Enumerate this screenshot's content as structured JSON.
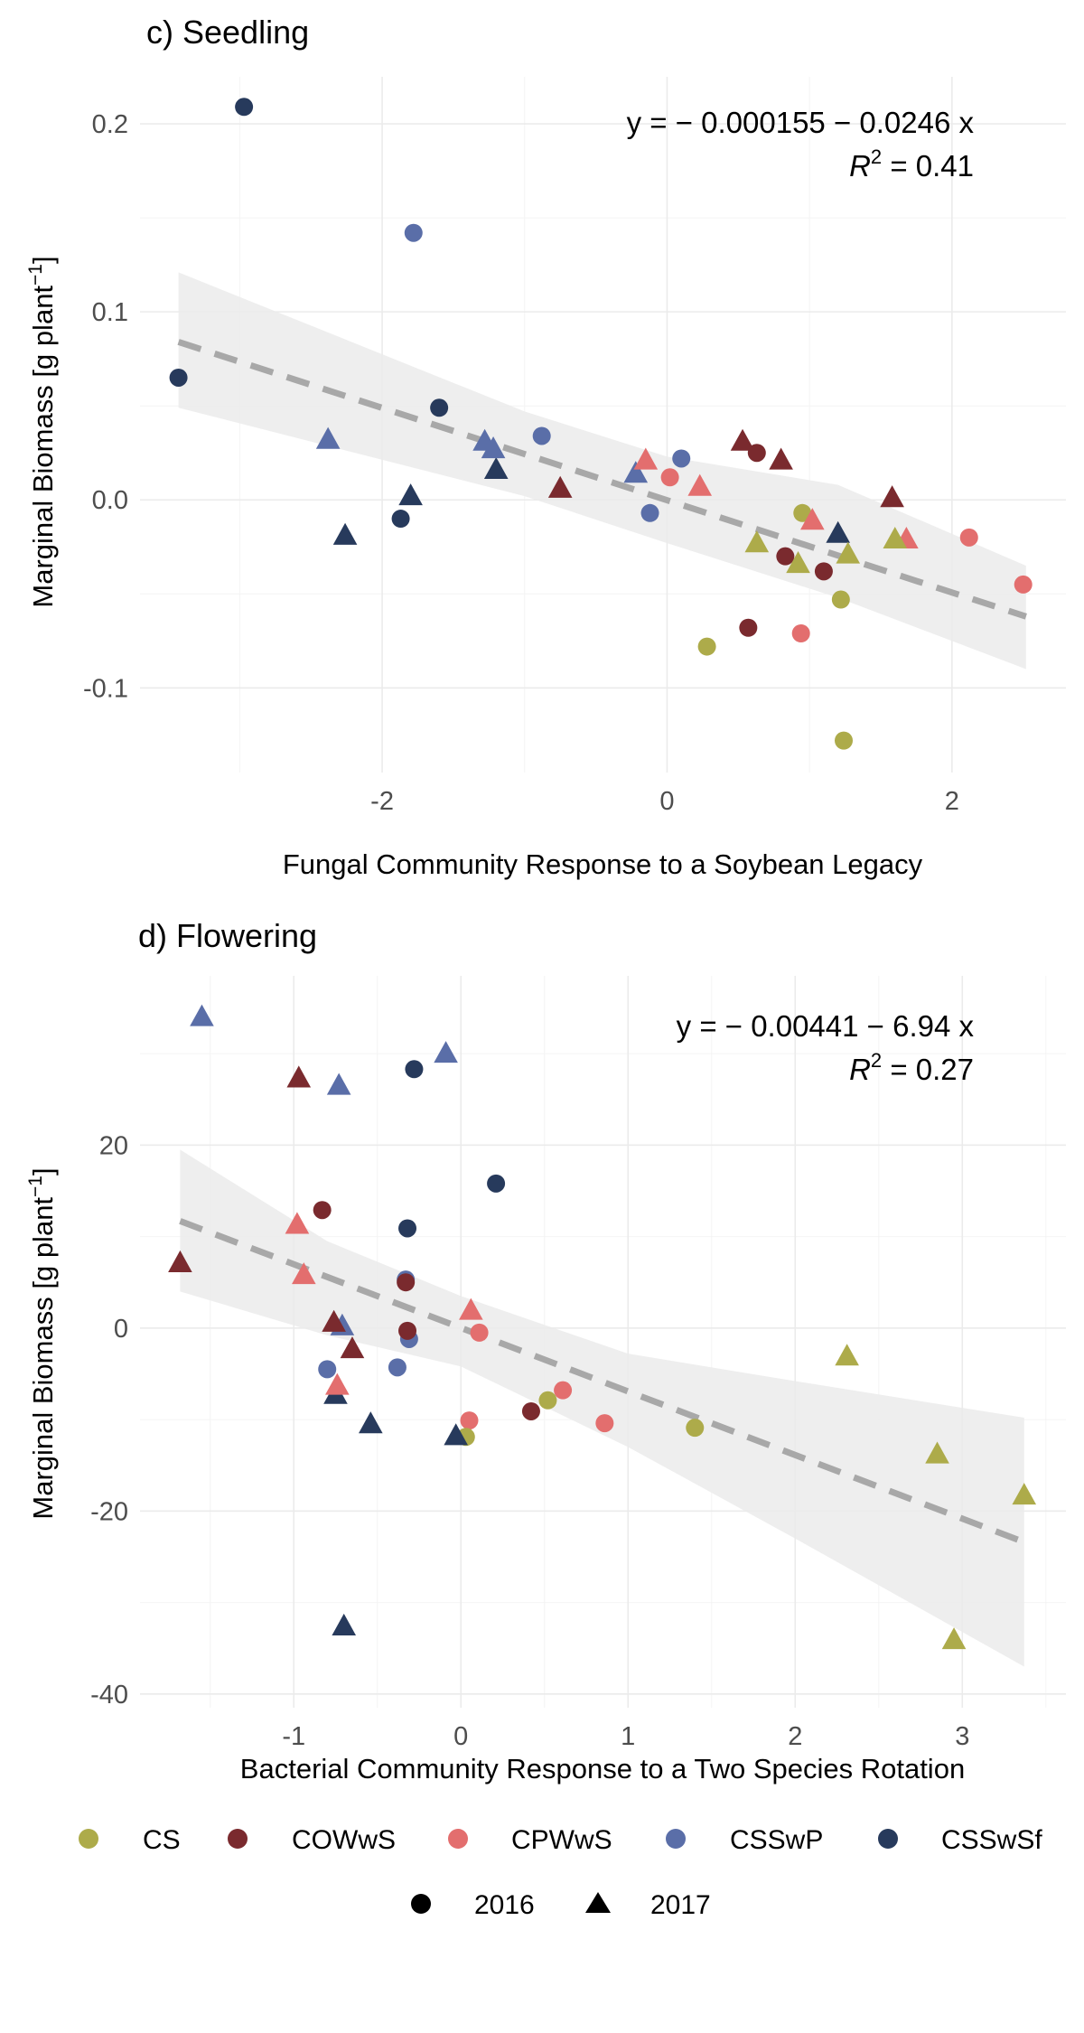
{
  "colors": {
    "CS": "#ADAB4A",
    "COWwS": "#7A2A2E",
    "CPWwS": "#E36E6E",
    "CSSwP": "#5A6EA8",
    "CSSwSf": "#273A5C",
    "ribbon": "#EBEBEB",
    "fit_line": "#A8A8A8"
  },
  "legend": {
    "groups": [
      "CS",
      "COWwS",
      "CPWwS",
      "CSSwP",
      "CSSwSf"
    ],
    "years": [
      "2016",
      "2017"
    ]
  },
  "chart_data": [
    {
      "type": "scatter",
      "title": "c) Seedling",
      "xlabel": "Fungal Community Response to a Soybean Legacy",
      "ylabel_main": "Marginal Biomass [g plant",
      "ylabel_sup": "−1",
      "ylabel_end": "]",
      "xlim": [
        -3.7,
        2.8
      ],
      "ylim": [
        -0.145,
        0.225
      ],
      "xticks": [
        -2,
        0,
        2
      ],
      "xtick_labels": [
        "-2",
        "0",
        "2"
      ],
      "yticks": [
        -0.1,
        0.0,
        0.1,
        0.2
      ],
      "ytick_labels": [
        "-0.1",
        "0.0",
        "0.1",
        "0.2"
      ],
      "equation": "y  =  − 0.000155 − 0.0246  x",
      "r2_label": "R",
      "r2_value": "  =  0.41",
      "fit": {
        "x": [
          -3.43,
          2.52
        ],
        "y": [
          0.084,
          -0.062
        ]
      },
      "ribbon": {
        "x": [
          -3.43,
          -1.0,
          0.0,
          1.2,
          2.52
        ],
        "upper": [
          0.121,
          0.047,
          0.023,
          0.008,
          -0.035
        ],
        "lower": [
          0.049,
          0.002,
          -0.023,
          -0.052,
          -0.09
        ]
      },
      "points": [
        {
          "x": -2.97,
          "y": 0.209,
          "group": "CSSwSf",
          "year": "2016"
        },
        {
          "x": -3.43,
          "y": 0.065,
          "group": "CSSwSf",
          "year": "2016"
        },
        {
          "x": -1.6,
          "y": 0.049,
          "group": "CSSwSf",
          "year": "2016"
        },
        {
          "x": -1.87,
          "y": -0.01,
          "group": "CSSwSf",
          "year": "2016"
        },
        {
          "x": -1.78,
          "y": 0.142,
          "group": "CSSwP",
          "year": "2016"
        },
        {
          "x": -0.88,
          "y": 0.034,
          "group": "CSSwP",
          "year": "2016"
        },
        {
          "x": 0.1,
          "y": 0.022,
          "group": "CSSwP",
          "year": "2016"
        },
        {
          "x": -0.12,
          "y": -0.007,
          "group": "CSSwP",
          "year": "2016"
        },
        {
          "x": 0.02,
          "y": 0.012,
          "group": "CPWwS",
          "year": "2016"
        },
        {
          "x": 2.12,
          "y": -0.02,
          "group": "CPWwS",
          "year": "2016"
        },
        {
          "x": 2.5,
          "y": -0.045,
          "group": "CPWwS",
          "year": "2016"
        },
        {
          "x": 0.94,
          "y": -0.071,
          "group": "CPWwS",
          "year": "2016"
        },
        {
          "x": 0.63,
          "y": 0.025,
          "group": "COWwS",
          "year": "2016"
        },
        {
          "x": 0.83,
          "y": -0.03,
          "group": "COWwS",
          "year": "2016"
        },
        {
          "x": 1.1,
          "y": -0.038,
          "group": "COWwS",
          "year": "2016"
        },
        {
          "x": 0.57,
          "y": -0.068,
          "group": "COWwS",
          "year": "2016"
        },
        {
          "x": 0.95,
          "y": -0.007,
          "group": "CS",
          "year": "2016"
        },
        {
          "x": 0.28,
          "y": -0.078,
          "group": "CS",
          "year": "2016"
        },
        {
          "x": 1.22,
          "y": -0.053,
          "group": "CS",
          "year": "2016"
        },
        {
          "x": 1.24,
          "y": -0.128,
          "group": "CS",
          "year": "2016"
        },
        {
          "x": -2.26,
          "y": -0.019,
          "group": "CSSwSf",
          "year": "2017"
        },
        {
          "x": -1.8,
          "y": 0.002,
          "group": "CSSwSf",
          "year": "2017"
        },
        {
          "x": -1.2,
          "y": 0.016,
          "group": "CSSwSf",
          "year": "2017"
        },
        {
          "x": 1.2,
          "y": -0.018,
          "group": "CSSwSf",
          "year": "2017"
        },
        {
          "x": -2.38,
          "y": 0.032,
          "group": "CSSwP",
          "year": "2017"
        },
        {
          "x": -1.28,
          "y": 0.031,
          "group": "CSSwP",
          "year": "2017"
        },
        {
          "x": -1.22,
          "y": 0.027,
          "group": "CSSwP",
          "year": "2017"
        },
        {
          "x": -0.22,
          "y": 0.014,
          "group": "CSSwP",
          "year": "2017"
        },
        {
          "x": -0.75,
          "y": 0.006,
          "group": "COWwS",
          "year": "2017"
        },
        {
          "x": 0.53,
          "y": 0.031,
          "group": "COWwS",
          "year": "2017"
        },
        {
          "x": 0.8,
          "y": 0.021,
          "group": "COWwS",
          "year": "2017"
        },
        {
          "x": 1.58,
          "y": 0.001,
          "group": "COWwS",
          "year": "2017"
        },
        {
          "x": -0.15,
          "y": 0.021,
          "group": "CPWwS",
          "year": "2017"
        },
        {
          "x": 0.23,
          "y": 0.007,
          "group": "CPWwS",
          "year": "2017"
        },
        {
          "x": 1.02,
          "y": -0.011,
          "group": "CPWwS",
          "year": "2017"
        },
        {
          "x": 1.68,
          "y": -0.021,
          "group": "CPWwS",
          "year": "2017"
        },
        {
          "x": 0.63,
          "y": -0.023,
          "group": "CS",
          "year": "2017"
        },
        {
          "x": 0.92,
          "y": -0.034,
          "group": "CS",
          "year": "2017"
        },
        {
          "x": 1.27,
          "y": -0.029,
          "group": "CS",
          "year": "2017"
        },
        {
          "x": 1.6,
          "y": -0.021,
          "group": "CS",
          "year": "2017"
        }
      ]
    },
    {
      "type": "scatter",
      "title": "d) Flowering",
      "xlabel": "Bacterial Community Response to a Two Species Rotation",
      "ylabel_main": "Marginal Biomass [g plant",
      "ylabel_sup": "−1",
      "ylabel_end": "]",
      "xlim": [
        -1.92,
        3.62
      ],
      "ylim": [
        -41.5,
        38.5
      ],
      "xticks": [
        -1,
        0,
        1,
        2,
        3
      ],
      "xtick_labels": [
        "-1",
        "0",
        "1",
        "2",
        "3"
      ],
      "yticks": [
        -40,
        -20,
        0,
        20
      ],
      "ytick_labels": [
        "-40",
        "-20",
        "0",
        "20"
      ],
      "equation": "y  =  − 0.00441 − 6.94  x",
      "r2_label": "R",
      "r2_value": "  =  0.27",
      "fit": {
        "x": [
          -1.68,
          3.37
        ],
        "y": [
          11.7,
          -23.4
        ]
      },
      "ribbon": {
        "x": [
          -1.68,
          -0.8,
          0.0,
          1.0,
          2.0,
          3.37
        ],
        "upper": [
          19.5,
          9.5,
          3.5,
          -2.8,
          -5.8,
          -9.8
        ],
        "lower": [
          4.0,
          -0.8,
          -4.2,
          -13.0,
          -23.0,
          -37.0
        ]
      },
      "points": [
        {
          "x": -0.28,
          "y": 28.3,
          "group": "CSSwSf",
          "year": "2016"
        },
        {
          "x": 0.21,
          "y": 15.8,
          "group": "CSSwSf",
          "year": "2016"
        },
        {
          "x": -0.32,
          "y": 10.9,
          "group": "CSSwSf",
          "year": "2016"
        },
        {
          "x": -0.33,
          "y": 5.3,
          "group": "CSSwP",
          "year": "2016"
        },
        {
          "x": -0.8,
          "y": -4.5,
          "group": "CSSwP",
          "year": "2016"
        },
        {
          "x": -0.38,
          "y": -4.3,
          "group": "CSSwP",
          "year": "2016"
        },
        {
          "x": -0.31,
          "y": -1.2,
          "group": "CSSwP",
          "year": "2016"
        },
        {
          "x": -0.83,
          "y": 12.9,
          "group": "COWwS",
          "year": "2016"
        },
        {
          "x": -0.33,
          "y": 5.0,
          "group": "COWwS",
          "year": "2016"
        },
        {
          "x": -0.32,
          "y": -0.3,
          "group": "COWwS",
          "year": "2016"
        },
        {
          "x": 0.42,
          "y": -9.1,
          "group": "COWwS",
          "year": "2016"
        },
        {
          "x": 0.11,
          "y": -0.5,
          "group": "CPWwS",
          "year": "2016"
        },
        {
          "x": 0.61,
          "y": -6.8,
          "group": "CPWwS",
          "year": "2016"
        },
        {
          "x": 0.86,
          "y": -10.4,
          "group": "CPWwS",
          "year": "2016"
        },
        {
          "x": 0.05,
          "y": -10.1,
          "group": "CPWwS",
          "year": "2016"
        },
        {
          "x": 0.52,
          "y": -7.9,
          "group": "CS",
          "year": "2016"
        },
        {
          "x": 1.4,
          "y": -10.9,
          "group": "CS",
          "year": "2016"
        },
        {
          "x": 0.03,
          "y": -11.9,
          "group": "CS",
          "year": "2016"
        },
        {
          "x": -0.75,
          "y": -7.3,
          "group": "CSSwSf",
          "year": "2017"
        },
        {
          "x": -0.54,
          "y": -10.5,
          "group": "CSSwSf",
          "year": "2017"
        },
        {
          "x": -0.03,
          "y": -11.8,
          "group": "CSSwSf",
          "year": "2017"
        },
        {
          "x": -0.7,
          "y": -32.6,
          "group": "CSSwSf",
          "year": "2017"
        },
        {
          "x": -1.55,
          "y": 34.0,
          "group": "CSSwP",
          "year": "2017"
        },
        {
          "x": -0.09,
          "y": 30.0,
          "group": "CSSwP",
          "year": "2017"
        },
        {
          "x": -0.73,
          "y": 26.5,
          "group": "CSSwP",
          "year": "2017"
        },
        {
          "x": -0.71,
          "y": 0.2,
          "group": "CSSwP",
          "year": "2017"
        },
        {
          "x": -0.97,
          "y": 27.3,
          "group": "COWwS",
          "year": "2017"
        },
        {
          "x": -1.68,
          "y": 7.1,
          "group": "COWwS",
          "year": "2017"
        },
        {
          "x": -0.76,
          "y": 0.6,
          "group": "COWwS",
          "year": "2017"
        },
        {
          "x": -0.65,
          "y": -2.3,
          "group": "COWwS",
          "year": "2017"
        },
        {
          "x": -0.98,
          "y": 11.3,
          "group": "CPWwS",
          "year": "2017"
        },
        {
          "x": -0.94,
          "y": 5.8,
          "group": "CPWwS",
          "year": "2017"
        },
        {
          "x": 0.06,
          "y": 1.9,
          "group": "CPWwS",
          "year": "2017"
        },
        {
          "x": -0.74,
          "y": -6.3,
          "group": "CPWwS",
          "year": "2017"
        },
        {
          "x": 2.31,
          "y": -3.1,
          "group": "CS",
          "year": "2017"
        },
        {
          "x": 2.85,
          "y": -13.8,
          "group": "CS",
          "year": "2017"
        },
        {
          "x": 3.37,
          "y": -18.3,
          "group": "CS",
          "year": "2017"
        },
        {
          "x": 2.95,
          "y": -34.1,
          "group": "CS",
          "year": "2017"
        }
      ]
    }
  ]
}
